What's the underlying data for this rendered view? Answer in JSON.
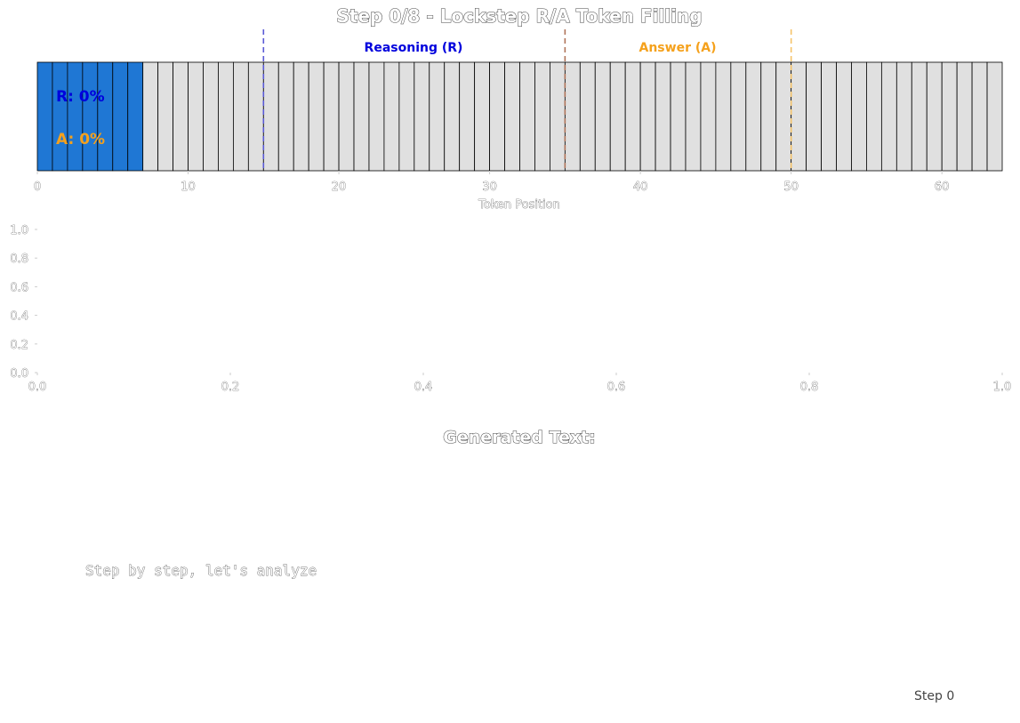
{
  "figure_title": "Step 0/8 - Lockstep R/A Token Filling",
  "chart_data": [
    {
      "type": "bar",
      "title": "",
      "xlabel": "Token Position",
      "ylabel": "",
      "xlim": [
        0,
        64
      ],
      "xticks": [
        0,
        10,
        20,
        30,
        40,
        50,
        60
      ],
      "token_count": 64,
      "filled_tokens": 7,
      "colors": {
        "filled": "#1f77d4",
        "empty": "#e0e0e0",
        "reasoning": "#0000dd",
        "answer": "#f5a11c",
        "boundary": "#b0745a"
      },
      "markers": [
        {
          "name": "reasoning-start",
          "x": 15,
          "color": "#5a5ad6"
        },
        {
          "name": "reasoning-answer-boundary",
          "x": 35,
          "color": "#b0745a"
        },
        {
          "name": "answer-end",
          "x": 50,
          "color": "#f5c36a"
        }
      ],
      "region_labels": {
        "reasoning": "Reasoning (R)",
        "answer": "Answer (A)"
      },
      "progress": {
        "reasoning_label": "R: 0%",
        "answer_label": "A: 0%",
        "reasoning_pct": 0,
        "answer_pct": 0
      }
    },
    {
      "type": "line",
      "title": "",
      "series": [],
      "xlim": [
        0,
        1
      ],
      "ylim": [
        0,
        1
      ],
      "xticks": [
        "0.0",
        "0.2",
        "0.4",
        "0.6",
        "0.8",
        "1.0"
      ],
      "yticks": [
        "0.0",
        "0.2",
        "0.4",
        "0.6",
        "0.8",
        "1.0"
      ]
    }
  ],
  "text_panel": {
    "title": "Generated Text:",
    "text": "Step by step, let's analyze",
    "step_label": "Step 0"
  }
}
